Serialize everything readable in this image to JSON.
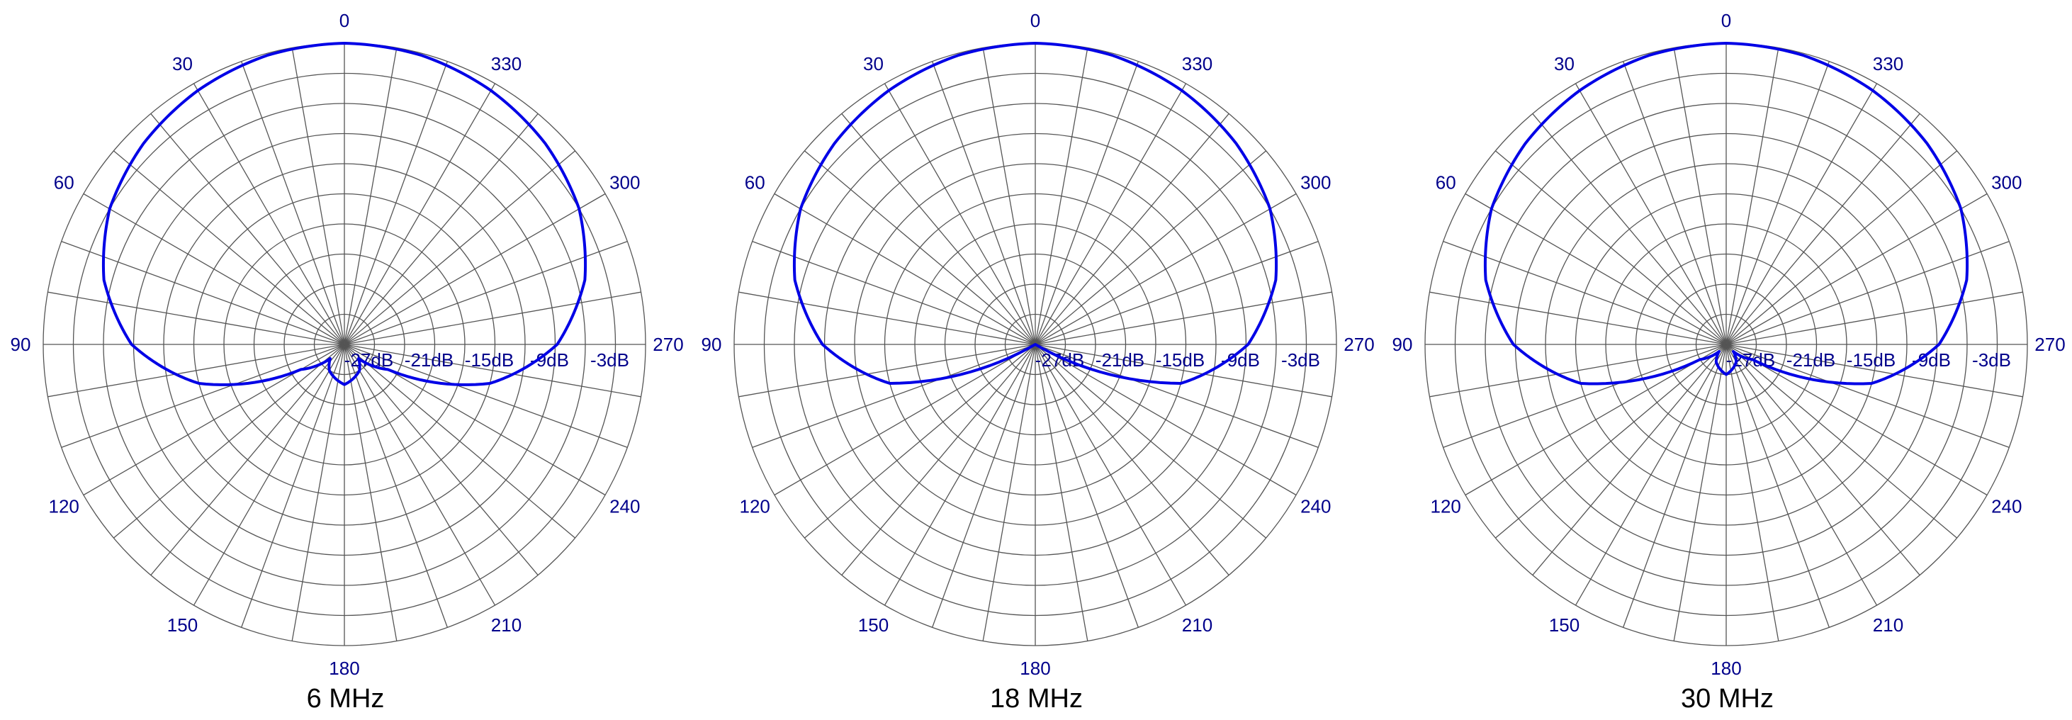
{
  "chart_data": [
    {
      "type": "polar-line",
      "title": "6 MHz",
      "angle_ticks": [
        "0",
        "30",
        "60",
        "90",
        "120",
        "150",
        "180",
        "210",
        "240",
        "270",
        "300",
        "330"
      ],
      "radial_ticks": [
        "-27dB",
        "-21dB",
        "-15dB",
        "-9dB",
        "-3dB"
      ],
      "r_range_db": [
        -30,
        0
      ],
      "angle_direction": "counterclockwise",
      "zero_position": "top",
      "series_color": "#0000e6",
      "pattern_samples": {
        "angle_deg": [
          0,
          15,
          30,
          45,
          60,
          75,
          90,
          105,
          120,
          135,
          150,
          165,
          180,
          195,
          210,
          225,
          240,
          255,
          270,
          285,
          300,
          315,
          330,
          345,
          360
        ],
        "gain_db": [
          0,
          -0.2,
          -0.8,
          -1.7,
          -3.0,
          -5.2,
          -8.8,
          -15,
          -25,
          -28,
          -27,
          -26.5,
          -26,
          -26.5,
          -27,
          -28,
          -25,
          -15,
          -8.8,
          -5.2,
          -3.0,
          -1.7,
          -0.8,
          -0.2,
          0
        ]
      }
    },
    {
      "type": "polar-line",
      "title": "18 MHz",
      "angle_ticks": [
        "0",
        "30",
        "60",
        "90",
        "120",
        "150",
        "180",
        "210",
        "240",
        "270",
        "300",
        "330"
      ],
      "radial_ticks": [
        "-27dB",
        "-21dB",
        "-15dB",
        "-9dB",
        "-3dB"
      ],
      "r_range_db": [
        -30,
        0
      ],
      "angle_direction": "counterclockwise",
      "zero_position": "top",
      "series_color": "#0000e6",
      "pattern_samples": {
        "angle_deg": [
          0,
          15,
          30,
          45,
          60,
          75,
          90,
          105,
          120,
          135,
          150,
          165,
          180,
          195,
          210,
          225,
          240,
          255,
          270,
          285,
          300,
          315,
          330,
          345,
          360
        ],
        "gain_db": [
          0,
          -0.2,
          -0.8,
          -1.7,
          -3.0,
          -5.2,
          -8.8,
          -15,
          -30,
          -30,
          -30,
          -30,
          -30,
          -30,
          -30,
          -30,
          -30,
          -15,
          -8.8,
          -5.2,
          -3.0,
          -1.7,
          -0.8,
          -0.2,
          0
        ]
      }
    },
    {
      "type": "polar-line",
      "title": "30 MHz",
      "angle_ticks": [
        "0",
        "30",
        "60",
        "90",
        "120",
        "150",
        "180",
        "210",
        "240",
        "270",
        "300",
        "330"
      ],
      "radial_ticks": [
        "-27dB",
        "-21dB",
        "-15dB",
        "-9dB",
        "-3dB"
      ],
      "r_range_db": [
        -30,
        0
      ],
      "angle_direction": "counterclockwise",
      "zero_position": "top",
      "series_color": "#0000e6",
      "pattern_samples": {
        "angle_deg": [
          0,
          15,
          30,
          45,
          60,
          75,
          90,
          105,
          120,
          135,
          150,
          165,
          180,
          195,
          210,
          225,
          240,
          255,
          270,
          285,
          300,
          315,
          330,
          345,
          360
        ],
        "gain_db": [
          0,
          -0.2,
          -0.8,
          -1.7,
          -3.0,
          -5.2,
          -8.8,
          -15,
          -27,
          -29,
          -28,
          -27.5,
          -27,
          -27.5,
          -28,
          -29,
          -27,
          -15,
          -8.8,
          -5.2,
          -3.0,
          -1.7,
          -0.8,
          -0.2,
          0
        ]
      }
    }
  ]
}
